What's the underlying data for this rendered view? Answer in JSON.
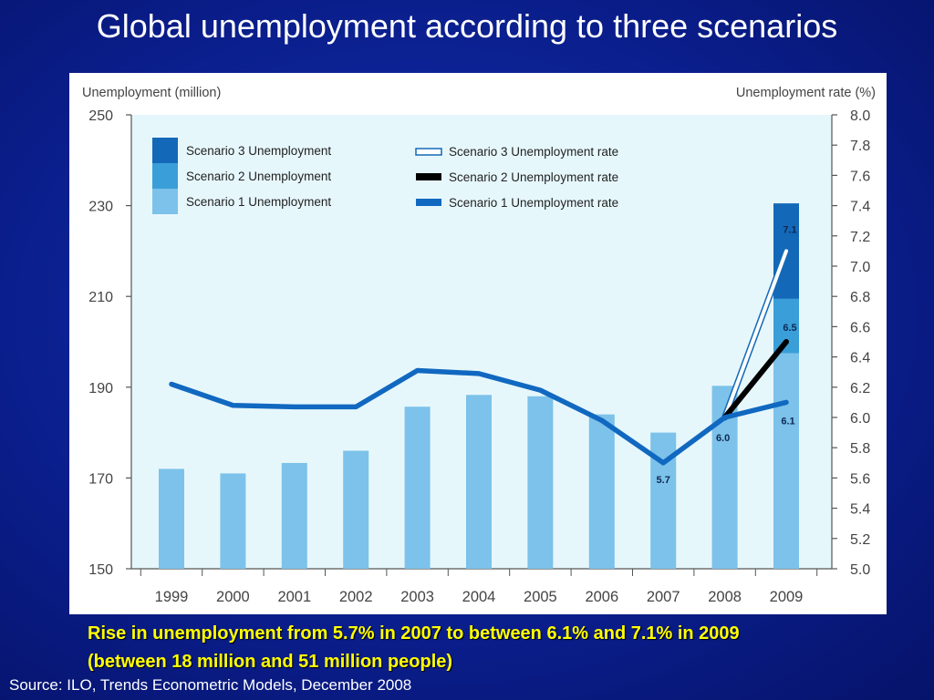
{
  "title": "Global unemployment according to three scenarios",
  "caption": {
    "line1": "Rise in unemployment from 5.7% in 2007 to between 6.1% and 7.1% in 2009",
    "line2": "(between 18 million and 51 million people)"
  },
  "source": "Source: ILO, Trends Econometric Models, December 2008",
  "colors": {
    "plot_bg": "#e6f7fc",
    "scenario1_bar": "#7cc2ea",
    "scenario2_bar": "#3a9fd8",
    "scenario3_bar": "#1468b8",
    "scenario1_line": "#1168c0",
    "scenario2_line": "#000000",
    "scenario3_line": "#ffffff"
  },
  "chart_data": {
    "type": "bar",
    "categories": [
      "1999",
      "2000",
      "2001",
      "2002",
      "2003",
      "2004",
      "2005",
      "2006",
      "2007",
      "2008",
      "2009"
    ],
    "left_axis": {
      "label": "Unemployment (million)",
      "min": 150,
      "max": 250,
      "ticks": [
        "250",
        "230",
        "210",
        "190",
        "170",
        "150"
      ]
    },
    "right_axis": {
      "label": "Unemployment rate (%)",
      "min": 5.0,
      "max": 8.0,
      "ticks": [
        "8.0",
        "7.8",
        "7.6",
        "7.4",
        "7.2",
        "7.0",
        "6.8",
        "6.6",
        "6.4",
        "6.2",
        "6.0",
        "5.8",
        "5.6",
        "5.4",
        "5.2",
        "5.0"
      ]
    },
    "bars": {
      "scenario1": {
        "name": "Scenario 1 Unemployment",
        "values": [
          172,
          171,
          173.3,
          176,
          185.7,
          188.3,
          188,
          184,
          180,
          190.3,
          197.5
        ]
      },
      "scenario2_top_2009": {
        "name": "Scenario 2 Unemployment",
        "value": 209.5
      },
      "scenario3_top_2009": {
        "name": "Scenario 3 Unemployment",
        "value": 230.5
      }
    },
    "lines": {
      "scenario1": {
        "name": "Scenario 1 Unemployment rate",
        "values": [
          6.22,
          6.08,
          6.07,
          6.07,
          6.31,
          6.29,
          6.18,
          5.98,
          5.7,
          6.0,
          6.1
        ]
      },
      "scenario2": {
        "name": "Scenario 2 Unemployment rate",
        "points": [
          [
            "2008",
            6.0
          ],
          [
            "2009",
            6.5
          ]
        ]
      },
      "scenario3": {
        "name": "Scenario 3 Unemployment rate",
        "points": [
          [
            "2008",
            6.0
          ],
          [
            "2009",
            7.1
          ]
        ]
      }
    },
    "data_labels": [
      {
        "category": "2007",
        "text": "5.7"
      },
      {
        "category": "2008",
        "text": "6.0"
      },
      {
        "category": "2009",
        "text": "6.1"
      },
      {
        "category": "2009",
        "text": "6.5"
      },
      {
        "category": "2009",
        "text": "7.1"
      }
    ],
    "legend_position": "top-left"
  }
}
